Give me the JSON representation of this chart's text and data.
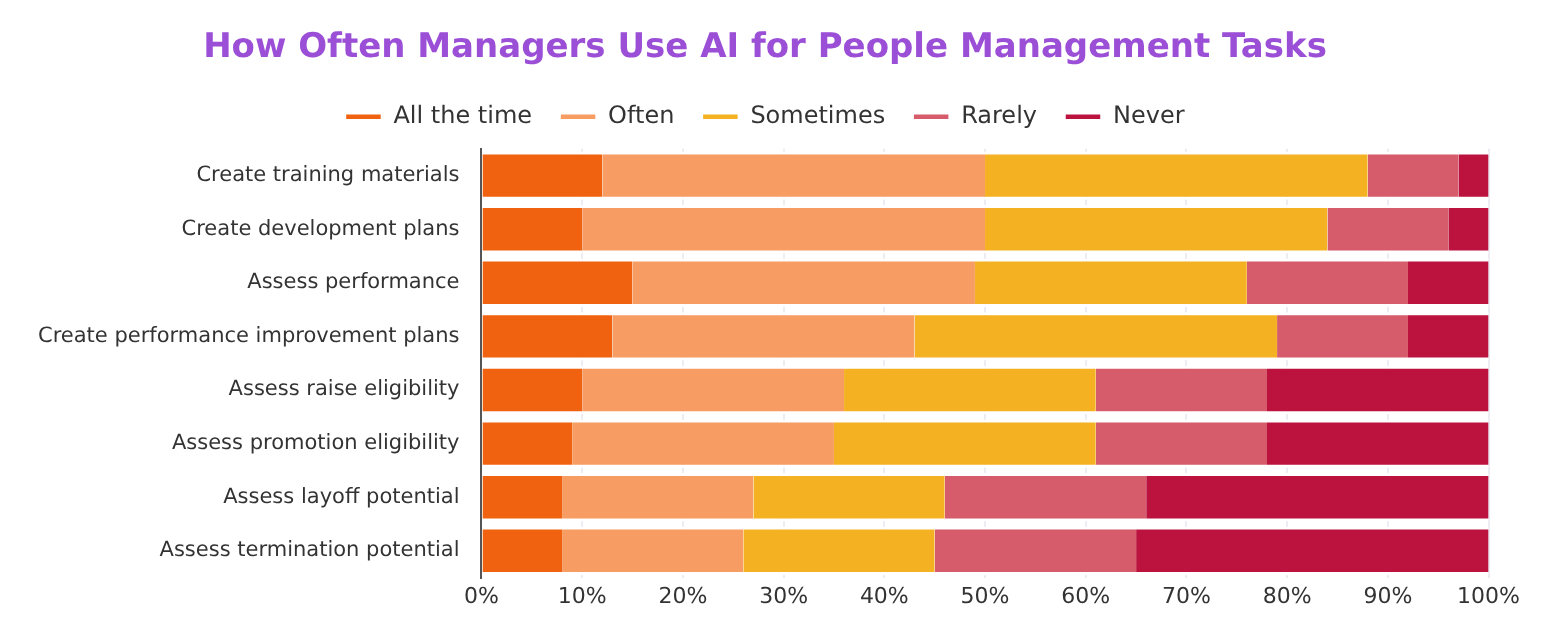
{
  "chart_data": {
    "type": "bar",
    "title": "How Often Managers Use AI for People Management Tasks",
    "orientation": "horizontal",
    "stacked": true,
    "categories": [
      "Create training materials",
      "Create development plans",
      "Assess performance",
      "Create performance improvement plans",
      "Assess raise eligibility",
      "Assess promotion eligibility",
      "Assess layoff potential",
      "Assess termination potential"
    ],
    "series": [
      {
        "name": "All the time",
        "color": "#f0620f",
        "values": [
          12,
          10,
          15,
          13,
          10,
          9,
          8,
          8
        ]
      },
      {
        "name": "Often",
        "color": "#f79c62",
        "values": [
          38,
          40,
          34,
          30,
          26,
          26,
          19,
          18
        ]
      },
      {
        "name": "Sometimes",
        "color": "#f4b223",
        "values": [
          38,
          34,
          27,
          36,
          25,
          26,
          19,
          19
        ]
      },
      {
        "name": "Rarely",
        "color": "#d65b6b",
        "values": [
          9,
          12,
          16,
          13,
          17,
          17,
          20,
          20
        ]
      },
      {
        "name": "Never",
        "color": "#bb133e",
        "values": [
          3,
          4,
          8,
          8,
          22,
          22,
          34,
          35
        ]
      }
    ],
    "xlim": [
      0,
      100
    ],
    "xticks": [
      {
        "value": 0,
        "label": "0%"
      },
      {
        "value": 10,
        "label": "10%"
      },
      {
        "value": 20,
        "label": "20%"
      },
      {
        "value": 30,
        "label": "30%"
      },
      {
        "value": 40,
        "label": "40%"
      },
      {
        "value": 50,
        "label": "50%"
      },
      {
        "value": 60,
        "label": "60%"
      },
      {
        "value": 70,
        "label": "70%"
      },
      {
        "value": 80,
        "label": "80%"
      },
      {
        "value": 90,
        "label": "90%"
      },
      {
        "value": 100,
        "label": "100%"
      }
    ],
    "grid": "x",
    "legend": "top"
  }
}
